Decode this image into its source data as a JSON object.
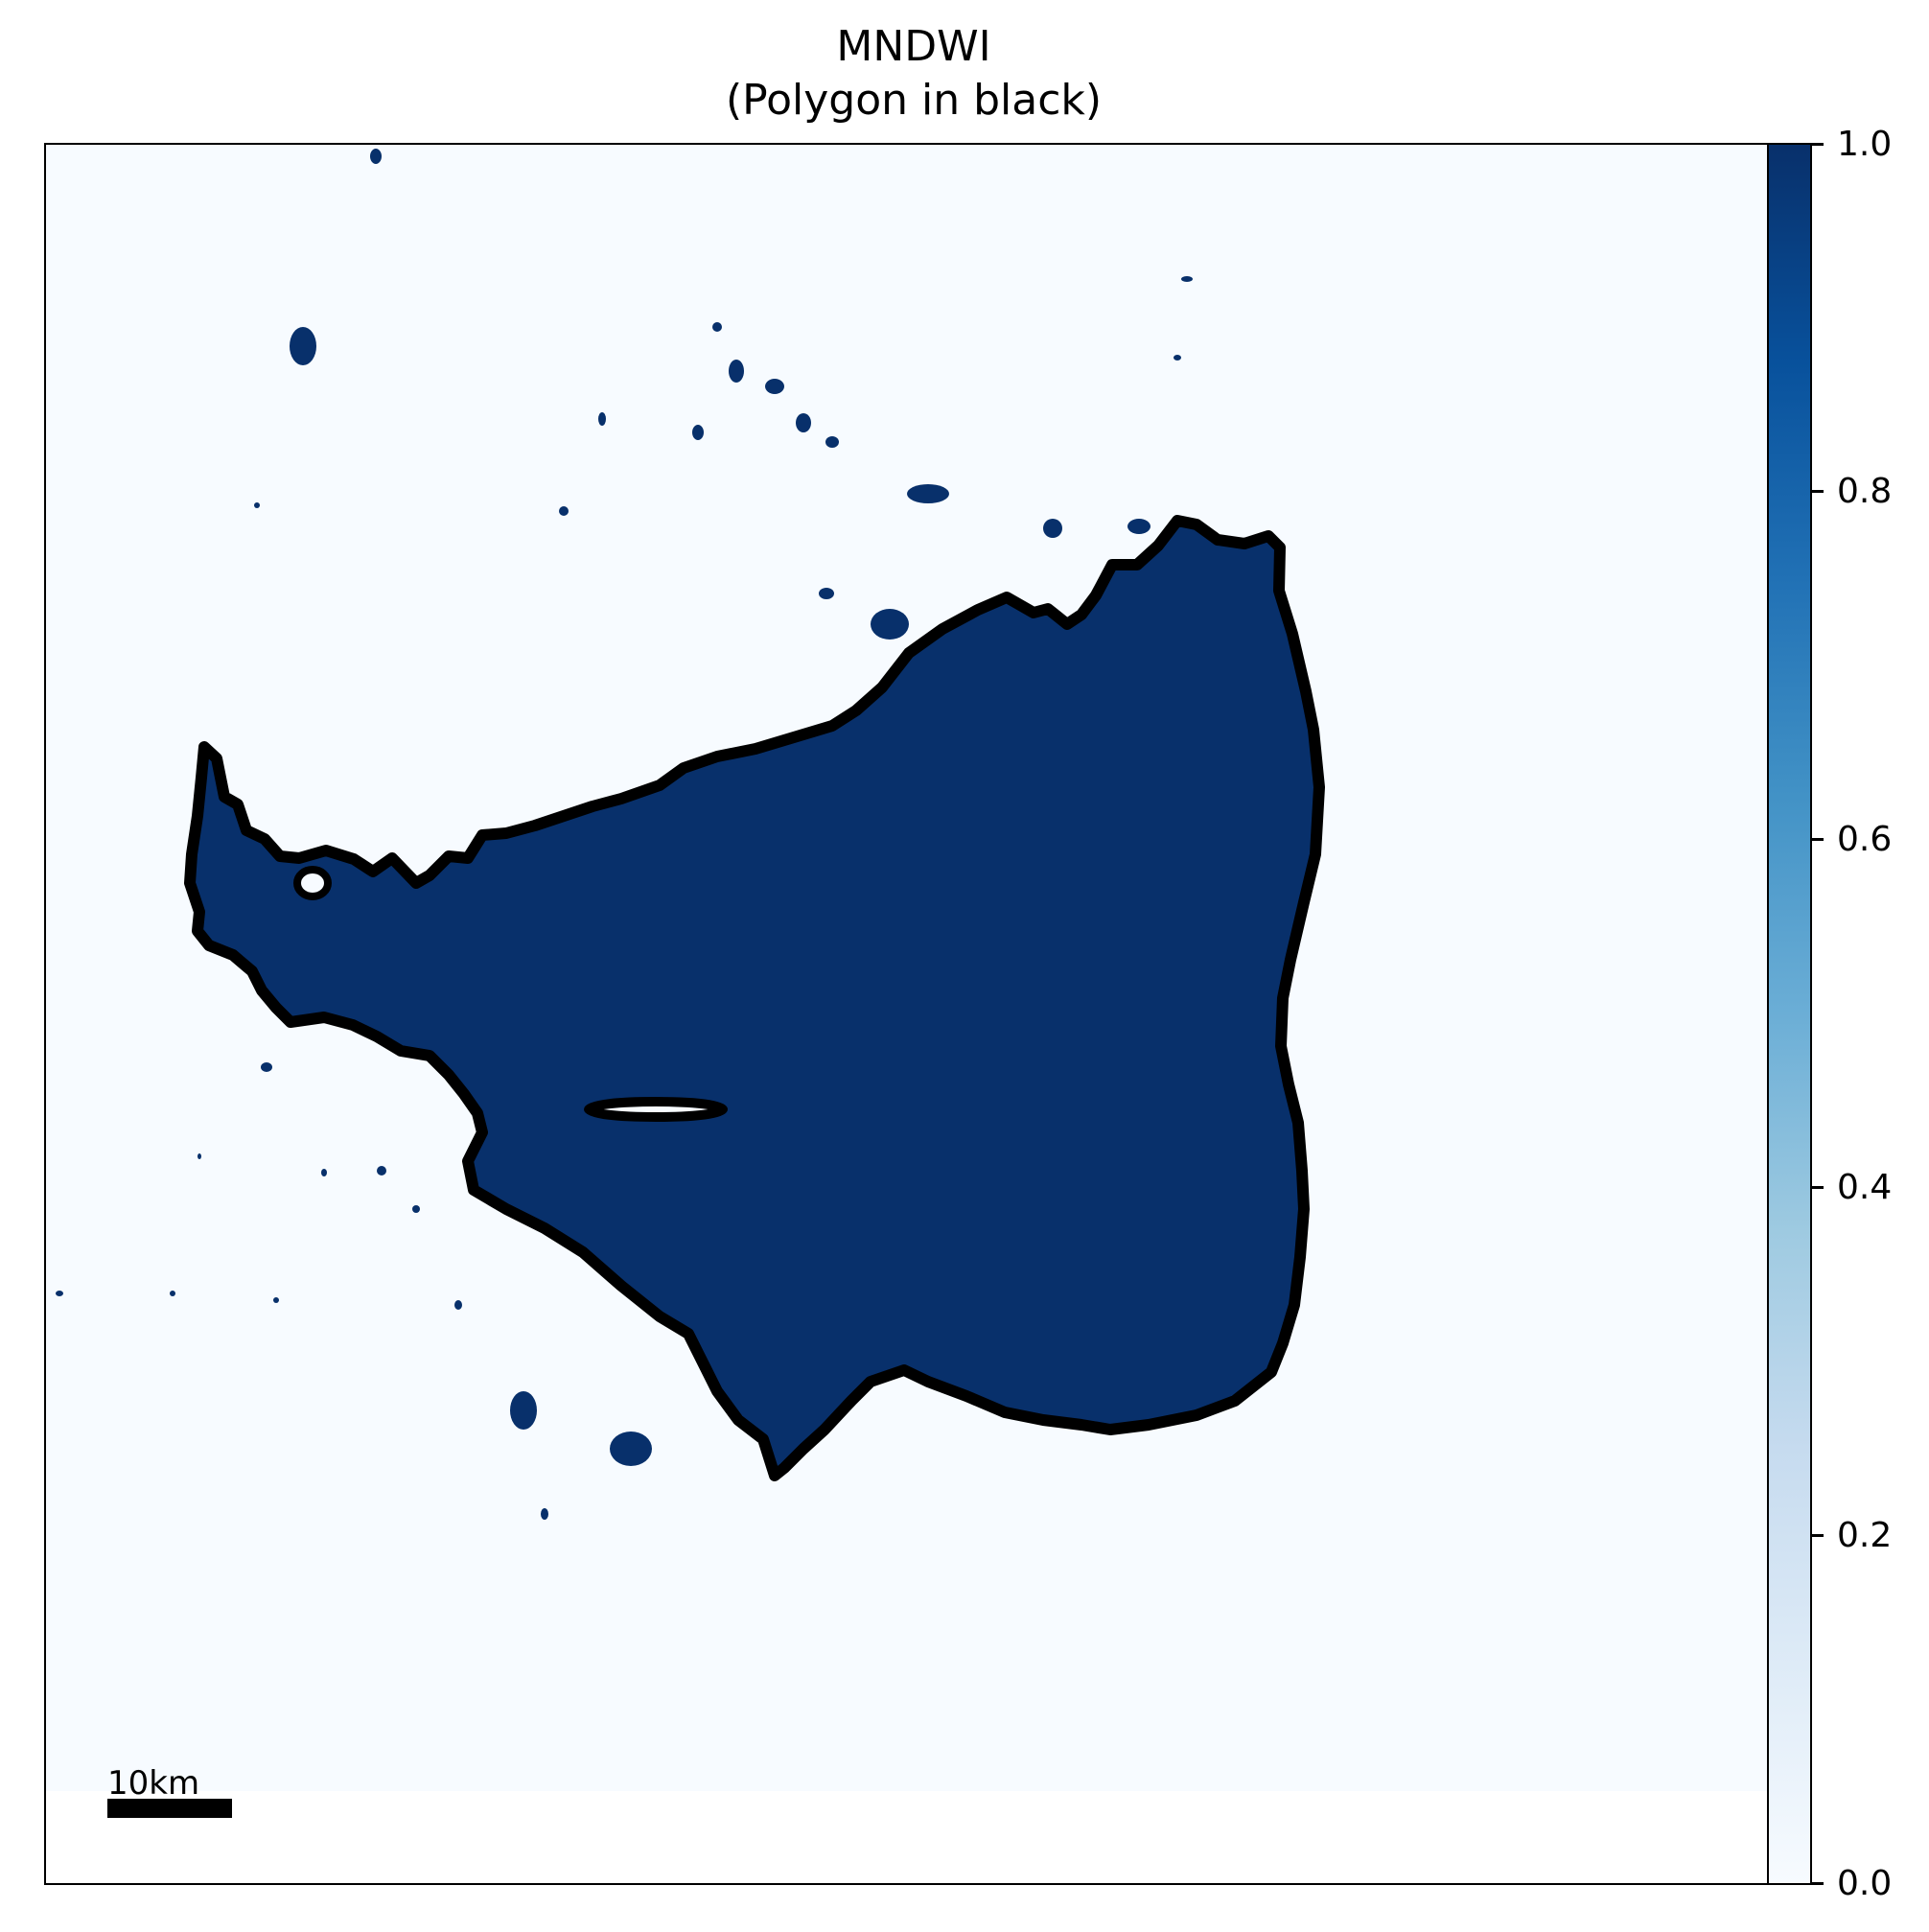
{
  "figure": {
    "title_line1": "MNDWI",
    "title_line2": "(Polygon in black)"
  },
  "colorbar": {
    "min": 0.0,
    "max": 1.0,
    "colormap": "Blues",
    "ticks": [
      "0.0",
      "0.2",
      "0.4",
      "0.6",
      "0.8",
      "1.0"
    ]
  },
  "scale_bar": {
    "label": "10km"
  },
  "colors": {
    "water": "#08306b",
    "land": "#f7fbff",
    "polygon_outline": "#000000",
    "background": "#ffffff"
  },
  "legend": {
    "polygon_outline_color": "black"
  }
}
